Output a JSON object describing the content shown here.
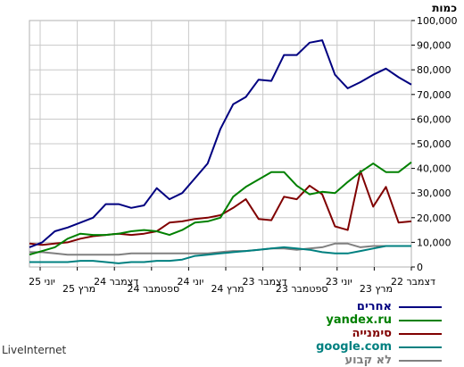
{
  "chart_data": {
    "type": "line",
    "unit_label": "כמות",
    "ylim": [
      0,
      100000
    ],
    "y_ticks": [
      "0",
      "10,000",
      "20,000",
      "30,000",
      "40,000",
      "50,000",
      "60,000",
      "70,000",
      "80,000",
      "90,000",
      "100,000"
    ],
    "x_ticks": [
      "דצמבר 22",
      "מרץ 23",
      "יוני 23",
      "ספטמבר 23",
      "דצמבר 23",
      "מרץ 24",
      "יוני 24",
      "ספטמבר 24",
      "דצמבר 24",
      "מרץ 25",
      "יוני 25"
    ],
    "grid": true,
    "legend_position": "bottom-right",
    "series": [
      {
        "name": "אחרים",
        "color": "#000080",
        "values": [
          74000,
          77000,
          80500,
          78000,
          75000,
          72500,
          78000,
          92000,
          91000,
          86000,
          86000,
          75500,
          76000,
          69000,
          66000,
          56000,
          42000,
          36000,
          30000,
          27500,
          32000,
          25000,
          24000,
          25500,
          25500,
          20000,
          18000,
          16000,
          14500,
          10000,
          8000
        ]
      },
      {
        "name": "yandex.ru",
        "color": "#008000",
        "values": [
          42500,
          38500,
          38500,
          42000,
          38500,
          34500,
          30000,
          30500,
          29500,
          33000,
          38500,
          38500,
          35500,
          32500,
          28500,
          20000,
          18500,
          18000,
          15000,
          13000,
          14500,
          15000,
          14500,
          13500,
          13000,
          13000,
          13500,
          11500,
          8000,
          6500,
          5000
        ]
      },
      {
        "name": "סימנייה",
        "color": "#800000",
        "values": [
          18500,
          18000,
          32500,
          24500,
          39000,
          15000,
          16500,
          29500,
          33000,
          27500,
          28500,
          19000,
          19500,
          27500,
          24000,
          21000,
          20000,
          19500,
          18500,
          18000,
          14500,
          13500,
          13000,
          13500,
          13000,
          12500,
          11500,
          10000,
          9500,
          9000,
          9500
        ]
      },
      {
        "name": "google.com",
        "color": "#008080",
        "values": [
          8500,
          8500,
          8500,
          7500,
          6500,
          5500,
          5500,
          6000,
          7000,
          7500,
          8000,
          7500,
          7000,
          6500,
          6000,
          5500,
          5000,
          4500,
          3000,
          2500,
          2500,
          2000,
          2000,
          1500,
          2000,
          2500,
          2500,
          2000,
          2000,
          2000,
          2000
        ]
      },
      {
        "name": "לא קבוע",
        "color": "#808080",
        "values": [
          8500,
          8500,
          8500,
          8500,
          8000,
          9500,
          9500,
          8000,
          7500,
          7000,
          7500,
          7500,
          7000,
          6500,
          6500,
          6000,
          5500,
          5500,
          5500,
          5500,
          5500,
          5500,
          5500,
          5000,
          5000,
          5000,
          5000,
          5000,
          5500,
          6000,
          6000
        ]
      }
    ]
  },
  "footer": "LiveInternet"
}
